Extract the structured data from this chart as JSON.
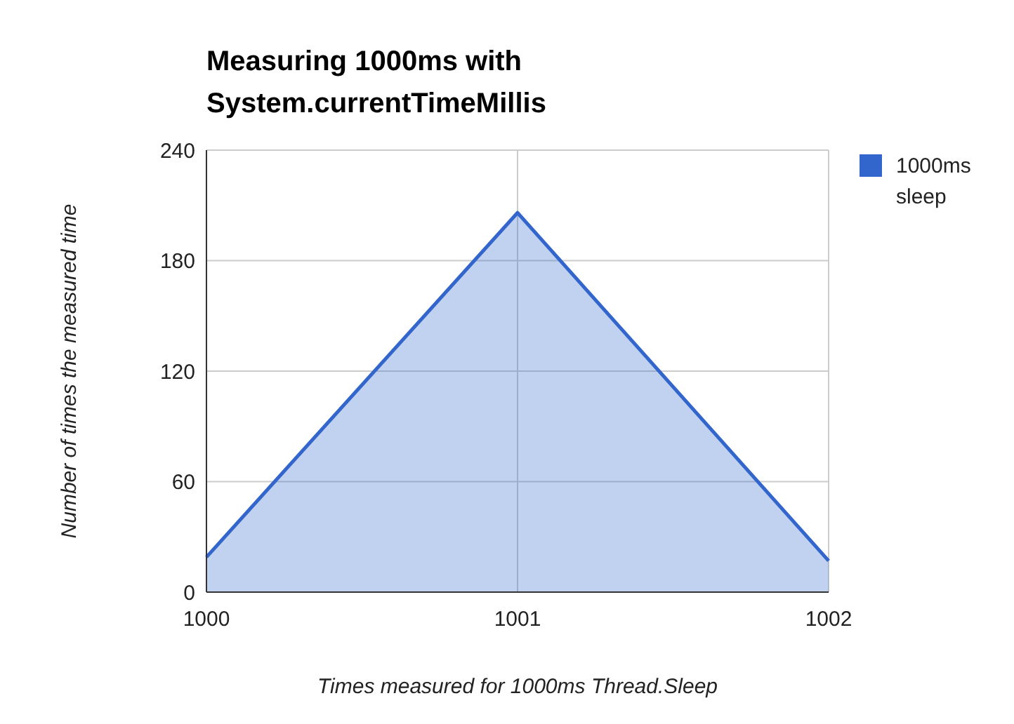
{
  "chart_data": {
    "type": "area",
    "title": "Measuring 1000ms with System.currentTimeMillis",
    "xlabel": "Times measured for 1000ms Thread.Sleep",
    "ylabel": "Number of times the measured time",
    "x": [
      1000,
      1001,
      1002
    ],
    "series": [
      {
        "name": "1000ms sleep",
        "color": "#3366cc",
        "values": [
          19,
          206,
          17
        ]
      }
    ],
    "xlim": [
      1000,
      1002
    ],
    "xticks": [
      1000,
      1001,
      1002
    ],
    "ylim": [
      0,
      240
    ],
    "yticks": [
      0,
      60,
      120,
      180,
      240
    ],
    "grid": true,
    "legend": "top right"
  }
}
